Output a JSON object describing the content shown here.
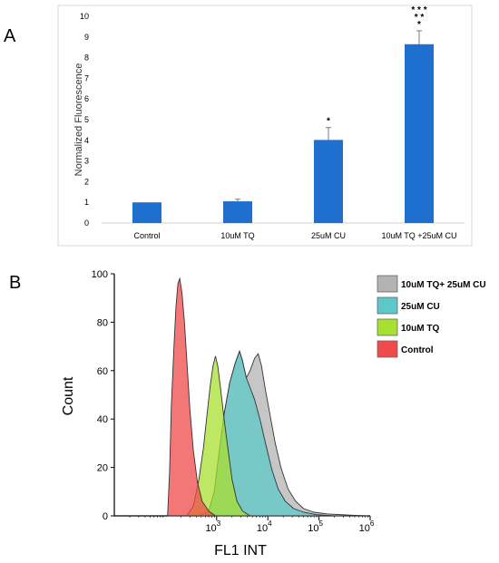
{
  "chart_data": [
    {
      "panel": "A",
      "type": "bar",
      "categories": [
        "Control",
        "10uM TQ",
        "25uM CU",
        "10uM TQ +25uM CU"
      ],
      "values": [
        1.0,
        1.05,
        4.02,
        8.65
      ],
      "errors": [
        0.0,
        0.1,
        0.6,
        0.65
      ],
      "significance": [
        "",
        "",
        "*",
        "* * *\n* *\n*"
      ],
      "ylabel": "Normalized Fluorescence",
      "xlabel": "",
      "ylim": [
        0,
        10
      ],
      "yticks": [
        "0",
        "1",
        "2",
        "3",
        "4",
        "5",
        "6",
        "7",
        "8",
        "9",
        "10"
      ],
      "bar_color": "#1f6fcf",
      "grid": false
    },
    {
      "panel": "B",
      "type": "area",
      "xlabel": "FL1 INT",
      "ylabel": "Count",
      "xscale": "log",
      "xlim": [
        10,
        1000000
      ],
      "ylim": [
        0,
        100
      ],
      "xticks": [
        "10",
        "10",
        "10",
        "10"
      ],
      "xtick_exps": [
        "3",
        "4",
        "5",
        "6"
      ],
      "yticks": [
        "0",
        "20",
        "40",
        "60",
        "80",
        "100"
      ],
      "legend_placement": "right",
      "series": [
        {
          "name": "10uM TQ+ 25uM CU",
          "color": "#b3b3b3",
          "points": [
            [
              450,
              0
            ],
            [
              700,
              2
            ],
            [
              900,
              10
            ],
            [
              1100,
              25
            ],
            [
              1400,
              42
            ],
            [
              1800,
              55
            ],
            [
              2300,
              63
            ],
            [
              2800,
              68
            ],
            [
              3200,
              64
            ],
            [
              3800,
              57
            ],
            [
              4500,
              60
            ],
            [
              5500,
              65
            ],
            [
              6500,
              67
            ],
            [
              7500,
              62
            ],
            [
              9000,
              52
            ],
            [
              11000,
              42
            ],
            [
              14000,
              30
            ],
            [
              18000,
              20
            ],
            [
              25000,
              11
            ],
            [
              35000,
              6
            ],
            [
              50000,
              3
            ],
            [
              80000,
              1.5
            ],
            [
              150000,
              0.8
            ],
            [
              400000,
              0.3
            ],
            [
              900000,
              0
            ]
          ]
        },
        {
          "name": "25uM CU",
          "color": "#5ec8c8",
          "points": [
            [
              450,
              0
            ],
            [
              700,
              2
            ],
            [
              900,
              10
            ],
            [
              1100,
              25
            ],
            [
              1400,
              42
            ],
            [
              1800,
              55
            ],
            [
              2300,
              63
            ],
            [
              2800,
              68
            ],
            [
              3200,
              64
            ],
            [
              3800,
              57
            ],
            [
              4500,
              53
            ],
            [
              5500,
              48
            ],
            [
              7000,
              40
            ],
            [
              9000,
              30
            ],
            [
              12000,
              19
            ],
            [
              16000,
              11
            ],
            [
              22000,
              6
            ],
            [
              32000,
              3
            ],
            [
              50000,
              1.5
            ],
            [
              90000,
              0.5
            ],
            [
              200000,
              0
            ]
          ]
        },
        {
          "name": "10uM TQ",
          "color": "#a8e030",
          "points": [
            [
              260,
              0
            ],
            [
              350,
              4
            ],
            [
              450,
              15
            ],
            [
              550,
              28
            ],
            [
              650,
              42
            ],
            [
              750,
              54
            ],
            [
              850,
              62
            ],
            [
              950,
              66
            ],
            [
              1050,
              62
            ],
            [
              1200,
              52
            ],
            [
              1400,
              40
            ],
            [
              1650,
              28
            ],
            [
              2000,
              15
            ],
            [
              2500,
              6
            ],
            [
              3200,
              2
            ],
            [
              4500,
              0
            ]
          ]
        },
        {
          "name": "Control",
          "color": "#f04a4a",
          "points": [
            [
              110,
              0
            ],
            [
              120,
              18
            ],
            [
              130,
              45
            ],
            [
              145,
              68
            ],
            [
              160,
              86
            ],
            [
              175,
              96
            ],
            [
              190,
              98
            ],
            [
              210,
              92
            ],
            [
              235,
              80
            ],
            [
              265,
              62
            ],
            [
              300,
              44
            ],
            [
              350,
              27
            ],
            [
              420,
              14
            ],
            [
              520,
              6
            ],
            [
              700,
              2
            ],
            [
              950,
              0
            ]
          ]
        }
      ]
    }
  ],
  "labels": {
    "panel_a": "A",
    "panel_b": "B"
  }
}
